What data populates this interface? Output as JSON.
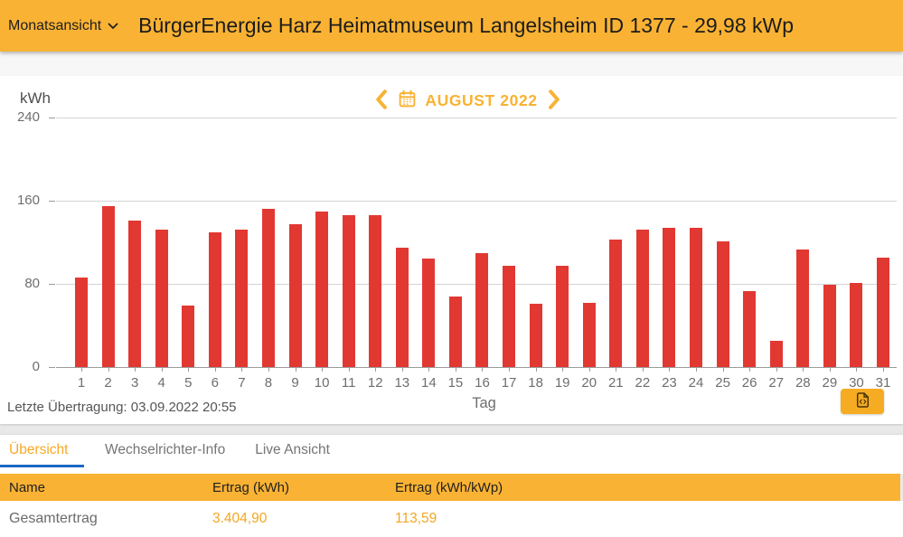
{
  "app_bar": {
    "view_selector": "Monatsansicht",
    "title": "BürgerEnergie Harz Heimatmuseum Langelsheim ID 1377 - 29,98 kWp"
  },
  "chart": {
    "unit_label": "kWh",
    "month_label": "AUGUST 2022",
    "xlabel": "Tag",
    "last_transmission": "Letzte Übertragung: 03.09.2022 20:55"
  },
  "chart_data": {
    "type": "bar",
    "title": "AUGUST 2022",
    "xlabel": "Tag",
    "ylabel": "kWh",
    "ylim": [
      0,
      240
    ],
    "yticks": [
      0,
      80,
      160,
      240
    ],
    "grid": "horizontal",
    "legend": "none",
    "categories": [
      1,
      2,
      3,
      4,
      5,
      6,
      7,
      8,
      9,
      10,
      11,
      12,
      13,
      14,
      15,
      16,
      17,
      18,
      19,
      20,
      21,
      22,
      23,
      24,
      25,
      26,
      27,
      28,
      29,
      30,
      31
    ],
    "values": [
      86,
      155,
      141,
      132,
      59,
      130,
      132,
      152,
      137,
      150,
      146,
      146,
      115,
      104,
      68,
      110,
      97,
      61,
      97,
      62,
      123,
      132,
      134,
      134,
      121,
      73,
      25,
      113,
      79,
      81,
      105
    ],
    "bar_color": "#E23832"
  },
  "tabs": [
    {
      "label": "Übersicht",
      "active": true
    },
    {
      "label": "Wechselrichter-Info",
      "active": false
    },
    {
      "label": "Live Ansicht",
      "active": false
    }
  ],
  "table": {
    "headers": [
      "Name",
      "Ertrag (kWh)",
      "Ertrag (kWh/kWp)"
    ],
    "rows": [
      [
        "Gesamtertrag",
        "3.404,90",
        "113,59"
      ]
    ]
  },
  "colors": {
    "header_orange": "#F9B233",
    "bar_red": "#E23832",
    "accent_blue": "#1B68C4",
    "value_orange": "#F5A623",
    "export_button_orange": "#F5AC23"
  }
}
